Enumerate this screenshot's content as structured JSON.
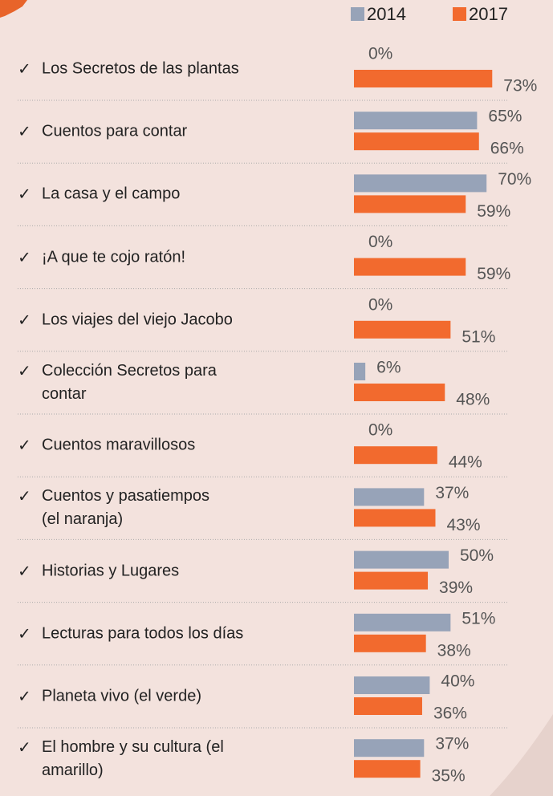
{
  "chart_data": {
    "type": "bar",
    "orientation": "horizontal",
    "categories": [
      "Los Secretos de las plantas",
      "Cuentos para contar",
      "La casa y el campo",
      "¡A que te cojo ratón!",
      "Los viajes del viejo Jacobo",
      "Colección Secretos para\ncontar",
      "Cuentos maravillosos",
      "Cuentos y pasatiempos\n(el naranja)",
      "Historias y Lugares",
      "Lecturas para todos los días",
      "Planeta vivo (el verde)",
      "El hombre y su cultura (el\namarillo)"
    ],
    "series": [
      {
        "name": "2014",
        "color": "#97a3b8",
        "values": [
          0,
          65,
          70,
          0,
          0,
          6,
          0,
          37,
          50,
          51,
          40,
          37
        ],
        "value_labels": [
          "0%",
          "65%",
          "70%",
          "0%",
          "0%",
          "6%",
          "0%",
          "37%",
          "50%",
          "51%",
          "40%",
          "37%"
        ]
      },
      {
        "name": "2017",
        "color": "#f26a2e",
        "values": [
          73,
          66,
          59,
          59,
          51,
          48,
          44,
          43,
          39,
          38,
          36,
          35
        ],
        "value_labels": [
          "73%",
          "66%",
          "59%",
          "59%",
          "51%",
          "48%",
          "44%",
          "43%",
          "39%",
          "38%",
          "36%",
          "35%"
        ]
      }
    ],
    "legend": "top-right"
  }
}
